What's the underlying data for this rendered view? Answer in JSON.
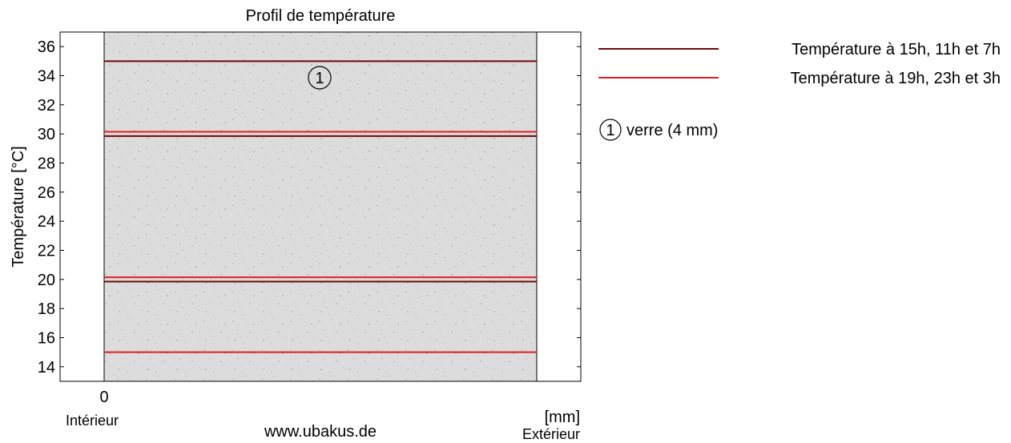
{
  "chart_data": {
    "type": "line",
    "title": "Profil de température",
    "ylabel": "Température [°C]",
    "xlabel": "[mm]",
    "x_tick_labels": [
      "0"
    ],
    "x_side_labels": {
      "left": "Intérieur",
      "right": "Extérieur"
    },
    "ylim": [
      13,
      37
    ],
    "y_ticks": [
      14,
      16,
      18,
      20,
      22,
      24,
      26,
      28,
      30,
      32,
      34,
      36
    ],
    "grid": false,
    "legend_position": "right",
    "layers": [
      {
        "marker": "1",
        "name": "verre (4 mm)",
        "fill": "#dcdcdc"
      }
    ],
    "series": [
      {
        "name": "Température à 15h, 11h et 7h",
        "color": "#6b0a0a",
        "values": [
          35,
          29.85,
          19.85
        ]
      },
      {
        "name": "Température à 19h, 23h et 3h",
        "color": "#e02020",
        "values": [
          30.15,
          20.15,
          15
        ]
      }
    ]
  },
  "footer": {
    "website": "www.ubakus.de"
  }
}
